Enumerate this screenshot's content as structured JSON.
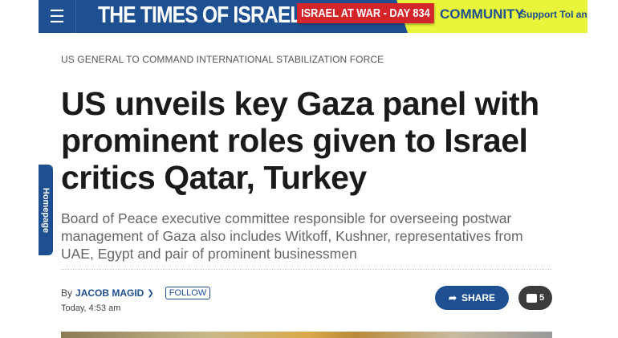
{
  "header": {
    "menu_icon": "hamburger-icon",
    "logo": "THE TIMES OF ISRAEL",
    "war_banner": "ISRAEL AT WAR - DAY 834",
    "community": "COMMUNITY",
    "support": "Support ToI an",
    "colors": {
      "brand": "#1d4f91",
      "banner": "#d4252a",
      "community_bg": "#e9f53a"
    }
  },
  "side_tab": {
    "label": "Homepage"
  },
  "article": {
    "kicker": "US GENERAL TO COMMAND INTERNATIONAL STABILIZATION FORCE",
    "title": "US unveils key Gaza panel with prominent roles given to Israel critics Qatar, Turkey",
    "subtitle": "Board of Peace executive committee responsible for overseeing postwar management of Gaza also includes Witkoff, Kushner, representatives from UAE, Egypt and pair of prominent businessmen",
    "byline_prefix": "By",
    "author": "JACOB MAGID",
    "follow_label": "FOLLOW",
    "date": "Today, 4:53 am",
    "share_label": "SHARE",
    "comment_count": "5"
  }
}
